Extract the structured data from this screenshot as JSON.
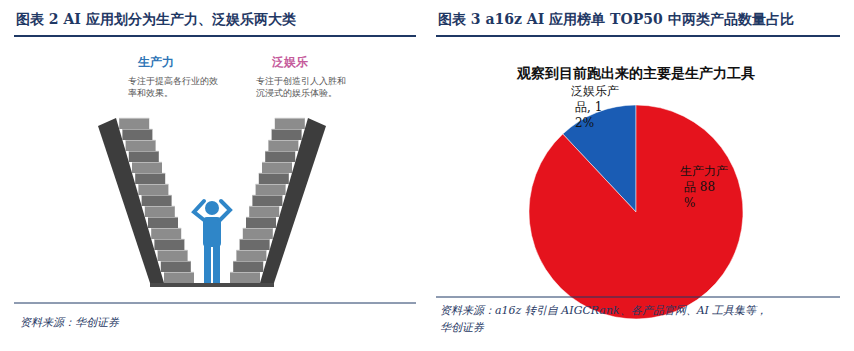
{
  "diagram": {
    "title": "图表 2 AI 应用划分为生产力、泛娱乐两大类",
    "source": "资料来源：华创证券",
    "nodes": [
      {
        "label": "生产力",
        "description": "专注于提高各行业的效率和效果。",
        "color": "#2e75b6"
      },
      {
        "label": "泛娱乐",
        "description": "专注于创造引人入胜和沉浸式的娱乐体验。",
        "color": "#c55a9b"
      }
    ]
  },
  "chart_data": {
    "type": "pie",
    "title": "图表 3 a16z AI 应用榜单 TOP50 中两类产品数量占比",
    "subtitle": "观察到目前跑出来的主要是生产力工具",
    "values": [
      12,
      88
    ],
    "value_labels": [
      "泛娱乐产品, 12%",
      "生产力产品 88%"
    ],
    "colors": [
      "#1a5cb4",
      "#e5131d"
    ],
    "data_labels": true,
    "source": [
      "资料来源：a16z 转引自 AIGCRank、各产品官网、AI 工具集等，",
      "华创证券"
    ]
  }
}
